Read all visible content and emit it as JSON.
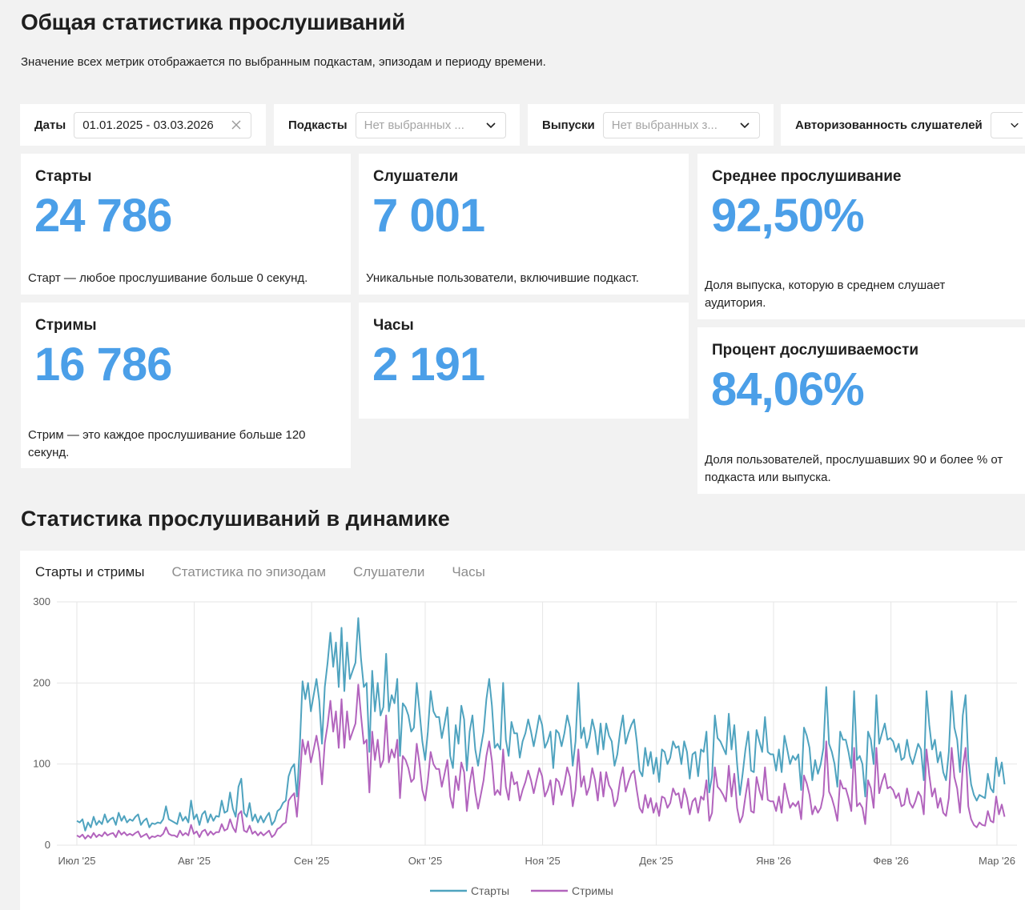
{
  "header": {
    "title": "Общая статистика прослушиваний",
    "subtitle": "Значение всех метрик отображается по выбранным подкастам, эпизодам и периоду времени."
  },
  "filters": {
    "dates": {
      "label": "Даты",
      "value": "01.01.2025 - 03.03.2026"
    },
    "podcasts": {
      "label": "Подкасты",
      "placeholder": "Нет выбранных ..."
    },
    "episodes": {
      "label": "Выпуски",
      "placeholder": "Нет выбранных з..."
    },
    "auth": {
      "label": "Авторизованность слушателей"
    }
  },
  "metrics": {
    "starts": {
      "title": "Старты",
      "value": "24 786",
      "desc": "Старт — любое прослушивание больше 0 секунд."
    },
    "listeners": {
      "title": "Слушатели",
      "value": "7 001",
      "desc": "Уникальные пользователи, включившие подкаст."
    },
    "avg_listen": {
      "title": "Среднее прослушивание",
      "value": "92,50%",
      "desc": "Доля выпуска, которую в среднем слушает аудитория."
    },
    "streams": {
      "title": "Стримы",
      "value": "16 786",
      "desc": "Стрим — это каждое прослушивание больше 120 секунд."
    },
    "hours": {
      "title": "Часы",
      "value": "2 191"
    },
    "completion": {
      "title": "Процент дослушиваемости",
      "value": "84,06%",
      "desc": "Доля пользователей, прослушавших 90 и более % от подкаста или выпуска."
    }
  },
  "dynamics": {
    "title": "Статистика прослушиваний в динамике",
    "tabs": [
      "Старты и стримы",
      "Статистика по эпизодам",
      "Слушатели",
      "Часы"
    ],
    "active_tab": 0
  },
  "colors": {
    "accent": "#4b9fe8",
    "starts": "#4fa3bf",
    "streams": "#b264bd"
  },
  "chart_data": {
    "type": "line",
    "x_start": "2025-07-01",
    "x_end": "2026-03-03",
    "x_ticks": [
      {
        "label": "Июл '25",
        "date": "2025-07-01"
      },
      {
        "label": "Авг '25",
        "date": "2025-08-01"
      },
      {
        "label": "Сен '25",
        "date": "2025-09-01"
      },
      {
        "label": "Окт '25",
        "date": "2025-10-01"
      },
      {
        "label": "Ноя '25",
        "date": "2025-11-01"
      },
      {
        "label": "Дек '25",
        "date": "2025-12-01"
      },
      {
        "label": "Янв '26",
        "date": "2026-01-01"
      },
      {
        "label": "Фев '26",
        "date": "2026-02-01"
      },
      {
        "label": "Мар '26",
        "date": "2026-03-01"
      }
    ],
    "y_ticks": [
      0,
      100,
      200,
      300
    ],
    "ylim": [
      0,
      300
    ],
    "grid": true,
    "legend_position": "bottom-center",
    "series": [
      {
        "name": "Старты",
        "color": "#4fa3bf",
        "values": [
          30,
          28,
          32,
          18,
          28,
          22,
          35,
          25,
          30,
          26,
          38,
          28,
          32,
          34,
          25,
          40,
          30,
          36,
          28,
          32,
          30,
          35,
          38,
          25,
          30,
          33,
          22,
          27,
          26,
          28,
          27,
          32,
          48,
          32,
          30,
          28,
          26,
          40,
          30,
          35,
          28,
          55,
          32,
          38,
          25,
          38,
          42,
          28,
          38,
          30,
          36,
          35,
          55,
          40,
          42,
          65,
          45,
          35,
          72,
          82,
          40,
          35,
          52,
          30,
          38,
          28,
          36,
          28,
          35,
          40,
          25,
          30,
          42,
          45,
          52,
          55,
          85,
          95,
          100,
          60,
          120,
          202,
          180,
          200,
          165,
          185,
          205,
          178,
          125,
          195,
          225,
          262,
          220,
          250,
          195,
          268,
          190,
          250,
          205,
          215,
          225,
          280,
          230,
          195,
          200,
          115,
          215,
          165,
          200,
          160,
          170,
          236,
          165,
          185,
          175,
          205,
          110,
          175,
          170,
          160,
          140,
          145,
          200,
          165,
          128,
          105,
          140,
          190,
          165,
          158,
          158,
          132,
          150,
          170,
          110,
          95,
          148,
          125,
          172,
          155,
          92,
          140,
          160,
          118,
          98,
          120,
          140,
          180,
          205,
          172,
          120,
          125,
          118,
          200,
          130,
          110,
          152,
          138,
          138,
          108,
          128,
          138,
          155,
          140,
          122,
          140,
          160,
          148,
          120,
          128,
          140,
          95,
          142,
          138,
          122,
          138,
          160,
          145,
          98,
          128,
          200,
          132,
          145,
          120,
          132,
          155,
          140,
          112,
          150,
          118,
          150,
          135,
          128,
          98,
          112,
          140,
          160,
          125,
          138,
          148,
          155,
          128,
          92,
          85,
          120,
          98,
          115,
          88,
          108,
          78,
          118,
          115,
          100,
          108,
          128,
          120,
          122,
          100,
          128,
          115,
          82,
          112,
          115,
          85,
          118,
          115,
          140,
          65,
          85,
          160,
          132,
          128,
          120,
          112,
          162,
          118,
          148,
          100,
          62,
          88,
          118,
          140,
          92,
          90,
          142,
          128,
          115,
          158,
          115,
          112,
          112,
          92,
          118,
          90,
          135,
          118,
          100,
          110,
          105,
          112,
          68,
          145,
          135,
          120,
          80,
          105,
          88,
          100,
          120,
          195,
          125,
          115,
          100,
          72,
          140,
          130,
          130,
          115,
          95,
          190,
          105,
          110,
          100,
          60,
          140,
          130,
          100,
          185,
          125,
          138,
          150,
          130,
          132,
          128,
          115,
          125,
          105,
          108,
          130,
          110,
          100,
          112,
          125,
          118,
          80,
          190,
          148,
          118,
          130,
          102,
          115,
          90,
          80,
          115,
          190,
          145,
          130,
          90,
          160,
          185,
          105,
          75,
          62,
          55,
          62,
          60,
          58,
          88,
          70,
          65,
          108,
          85,
          102,
          75
        ],
        "note": "sampled approx. daily"
      },
      {
        "name": "Стримы",
        "color": "#b264bd",
        "values": [
          12,
          10,
          13,
          8,
          12,
          9,
          15,
          10,
          13,
          11,
          16,
          12,
          14,
          15,
          10,
          18,
          13,
          16,
          12,
          14,
          12,
          15,
          17,
          10,
          12,
          14,
          8,
          11,
          10,
          12,
          11,
          14,
          22,
          14,
          12,
          12,
          10,
          18,
          12,
          15,
          12,
          25,
          14,
          17,
          10,
          17,
          19,
          12,
          17,
          13,
          16,
          16,
          26,
          18,
          20,
          32,
          22,
          16,
          38,
          42,
          18,
          16,
          24,
          14,
          17,
          12,
          16,
          12,
          15,
          18,
          10,
          13,
          20,
          22,
          26,
          28,
          55,
          60,
          64,
          35,
          80,
          130,
          112,
          128,
          102,
          118,
          135,
          115,
          75,
          126,
          148,
          178,
          140,
          165,
          120,
          180,
          120,
          165,
          130,
          140,
          150,
          198,
          160,
          125,
          130,
          65,
          140,
          105,
          130,
          96,
          105,
          160,
          102,
          118,
          108,
          130,
          58,
          110,
          105,
          95,
          78,
          82,
          125,
          100,
          68,
          55,
          80,
          115,
          100,
          94,
          94,
          72,
          88,
          105,
          60,
          46,
          85,
          68,
          102,
          90,
          42,
          76,
          96,
          65,
          45,
          62,
          80,
          110,
          128,
          104,
          62,
          68,
          62,
          118,
          72,
          56,
          90,
          75,
          78,
          55,
          68,
          78,
          92,
          80,
          64,
          80,
          95,
          85,
          60,
          68,
          80,
          50,
          82,
          78,
          62,
          76,
          96,
          84,
          48,
          68,
          118,
          72,
          85,
          62,
          72,
          95,
          80,
          55,
          90,
          60,
          90,
          74,
          68,
          48,
          56,
          80,
          96,
          66,
          78,
          88,
          92,
          68,
          46,
          40,
          62,
          46,
          58,
          40,
          52,
          36,
          60,
          58,
          46,
          52,
          70,
          62,
          64,
          46,
          70,
          58,
          38,
          54,
          58,
          40,
          60,
          56,
          80,
          30,
          40,
          96,
          72,
          68,
          62,
          54,
          98,
          60,
          88,
          46,
          28,
          36,
          60,
          82,
          42,
          40,
          84,
          68,
          56,
          96,
          56,
          54,
          54,
          42,
          60,
          40,
          76,
          60,
          46,
          52,
          48,
          54,
          32,
          86,
          76,
          62,
          38,
          48,
          40,
          46,
          62,
          128,
          66,
          58,
          46,
          30,
          80,
          70,
          70,
          58,
          42,
          120,
          48,
          52,
          46,
          26,
          80,
          70,
          46,
          120,
          64,
          78,
          88,
          70,
          72,
          68,
          58,
          64,
          48,
          50,
          70,
          52,
          46,
          54,
          66,
          60,
          38,
          118,
          86,
          60,
          70,
          46,
          58,
          40,
          36,
          58,
          120,
          84,
          70,
          40,
          96,
          120,
          48,
          32,
          25,
          22,
          28,
          25,
          24,
          42,
          30,
          28,
          60,
          38,
          50,
          35
        ]
      }
    ]
  }
}
